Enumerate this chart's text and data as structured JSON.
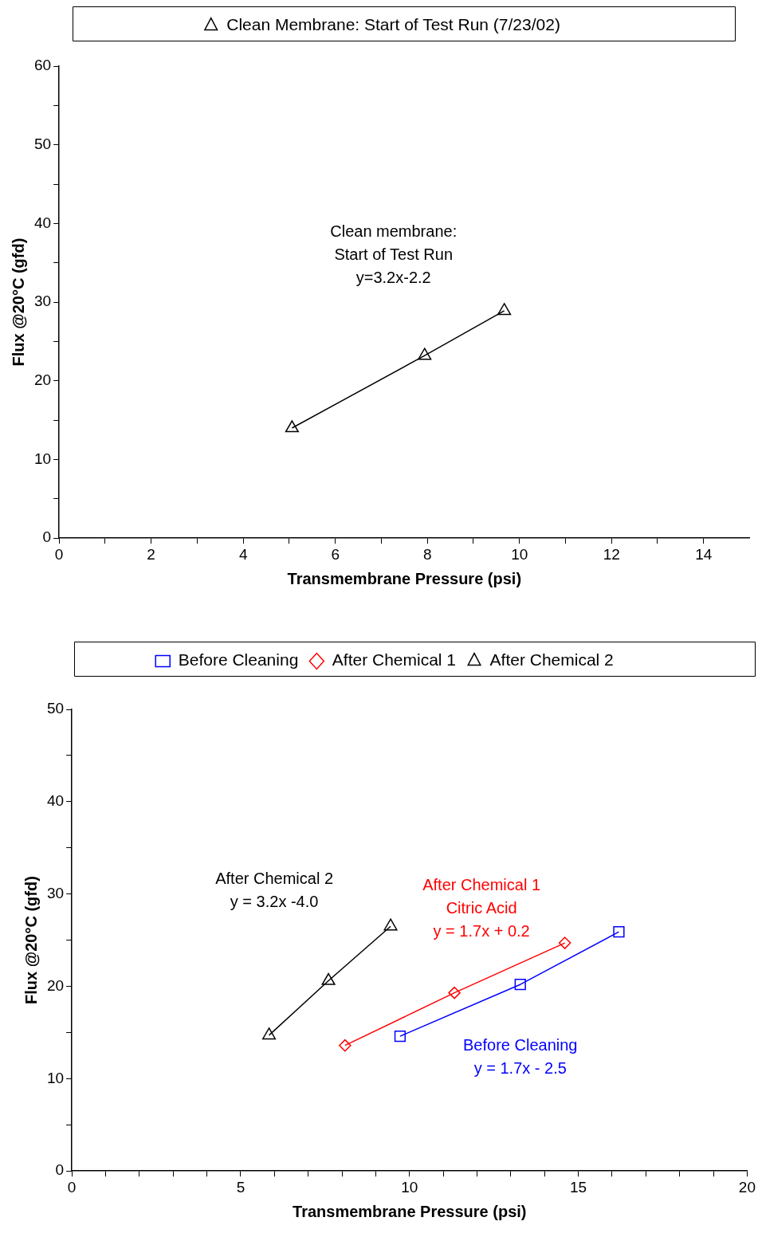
{
  "chart_data": [
    {
      "type": "line",
      "legend": "top",
      "marker": "triangle",
      "line_style": "solid",
      "xlabel": "Transmembrane Pressure (psi)",
      "ylabel": "Flux @20°C (gfd)",
      "series": [
        {
          "name": "Clean Membrane: Start of Test Run (7/23/02)",
          "color": "#000000",
          "x": [
            5.06,
            7.94,
            9.67
          ],
          "values": [
            14.0,
            23.2,
            28.9
          ]
        }
      ],
      "xlim": [
        0,
        15
      ],
      "xticks": [
        0,
        {
          "value": 1,
          "label": null
        },
        2,
        {
          "value": 3,
          "label": null
        },
        4,
        {
          "value": 5,
          "label": null
        },
        6,
        {
          "value": 7,
          "label": null
        },
        8,
        {
          "value": 9,
          "label": null
        },
        10,
        {
          "value": 11,
          "label": null
        },
        12,
        {
          "value": 13,
          "label": null
        },
        14
      ],
      "ylim": [
        0,
        60
      ],
      "yticks": [
        0,
        {
          "value": 5,
          "label": null
        },
        10,
        {
          "value": 15,
          "label": null
        },
        20,
        {
          "value": 25,
          "label": null
        },
        30,
        {
          "value": 35,
          "label": null
        },
        40,
        {
          "value": 45,
          "label": null
        },
        50,
        {
          "value": 55,
          "label": null
        },
        60
      ],
      "annotations": [
        "Clean membrane:\nStart of Test Run\ny=3.2x-2.2"
      ]
    },
    {
      "type": "line",
      "legend": "top",
      "line_style": "solid",
      "xlabel": "Transmembrane Pressure (psi)",
      "ylabel": "Flux @20°C (gfd)",
      "series": [
        {
          "name": "Before Cleaning",
          "color": "#0000ff",
          "marker": "square",
          "x": [
            9.72,
            13.28,
            16.2
          ],
          "values": [
            14.6,
            20.2,
            25.9
          ]
        },
        {
          "name": "After Chemical 1",
          "color": "#ff0000",
          "marker": "diamond",
          "x": [
            8.09,
            11.33,
            14.6
          ],
          "values": [
            13.6,
            19.3,
            24.7
          ]
        },
        {
          "name": "After Chemical 2",
          "color": "#000000",
          "marker": "triangle",
          "x": [
            5.84,
            7.6,
            9.44
          ],
          "values": [
            14.7,
            20.6,
            26.5
          ]
        }
      ],
      "xlim": [
        0,
        20
      ],
      "xticks": [
        0,
        {
          "value": 1,
          "label": null
        },
        {
          "value": 2,
          "label": null
        },
        {
          "value": 3,
          "label": null
        },
        {
          "value": 4,
          "label": null
        },
        5,
        {
          "value": 6,
          "label": null
        },
        {
          "value": 7,
          "label": null
        },
        {
          "value": 8,
          "label": null
        },
        {
          "value": 9,
          "label": null
        },
        10,
        {
          "value": 11,
          "label": null
        },
        {
          "value": 12,
          "label": null
        },
        {
          "value": 13,
          "label": null
        },
        {
          "value": 14,
          "label": null
        },
        15,
        {
          "value": 16,
          "label": null
        },
        {
          "value": 17,
          "label": null
        },
        {
          "value": 18,
          "label": null
        },
        {
          "value": 19,
          "label": null
        },
        20
      ],
      "ylim": [
        0,
        50
      ],
      "yticks": [
        0,
        {
          "value": 5,
          "label": null
        },
        10,
        {
          "value": 15,
          "label": null
        },
        20,
        {
          "value": 25,
          "label": null
        },
        30,
        {
          "value": 35,
          "label": null
        },
        40,
        {
          "value": 45,
          "label": null
        },
        50
      ],
      "annotations": [
        "Before Cleaning\ny = 1.7x - 2.5",
        "After Chemical 1\nCitric Acid\ny = 1.7x + 0.2",
        "After Chemical 2\ny = 3.2x -4.0"
      ]
    }
  ]
}
